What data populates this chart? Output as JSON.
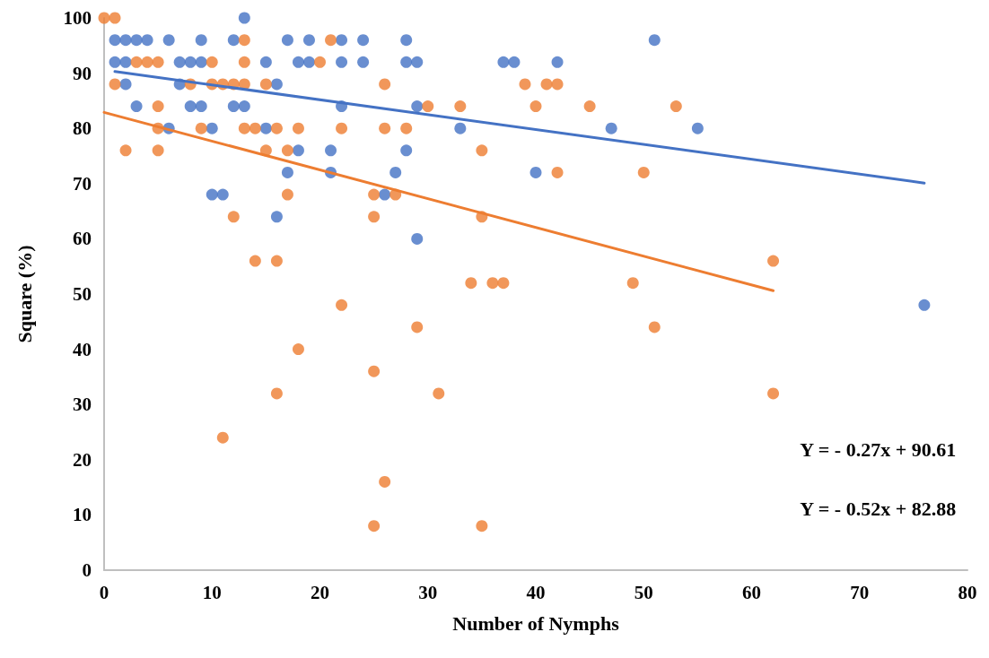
{
  "chart_data": {
    "type": "scatter",
    "xlabel": "Number of Nymphs",
    "ylabel": "Square (%)",
    "xlim": [
      0,
      80
    ],
    "ylim": [
      0,
      100
    ],
    "xticks": [
      0,
      10,
      20,
      30,
      40,
      50,
      60,
      70,
      80
    ],
    "yticks": [
      0,
      10,
      20,
      30,
      40,
      50,
      60,
      70,
      80,
      90,
      100
    ],
    "grid": false,
    "marker": "circle",
    "series": [
      {
        "color": "#4472c4",
        "x": [
          13,
          1,
          2,
          3,
          4,
          6,
          9,
          12,
          17,
          19,
          22,
          24,
          28,
          51,
          1,
          2,
          7,
          8,
          9,
          15,
          18,
          19,
          22,
          24,
          28,
          29,
          37,
          38,
          42,
          2,
          7,
          16,
          3,
          8,
          9,
          12,
          13,
          22,
          29,
          6,
          10,
          15,
          33,
          47,
          55,
          18,
          21,
          28,
          17,
          21,
          27,
          40,
          10,
          11,
          26,
          16,
          29,
          76
        ],
        "values": [
          100,
          96,
          96,
          96,
          96,
          96,
          96,
          96,
          96,
          96,
          96,
          96,
          96,
          96,
          92,
          92,
          92,
          92,
          92,
          92,
          92,
          92,
          92,
          92,
          92,
          92,
          92,
          92,
          92,
          88,
          88,
          88,
          84,
          84,
          84,
          84,
          84,
          84,
          84,
          80,
          80,
          80,
          80,
          80,
          80,
          76,
          76,
          76,
          72,
          72,
          72,
          72,
          68,
          68,
          68,
          64,
          60,
          48
        ]
      },
      {
        "color": "#ed7d31",
        "x": [
          0,
          1,
          13,
          21,
          3,
          4,
          5,
          10,
          13,
          20,
          1,
          8,
          10,
          11,
          12,
          13,
          15,
          26,
          39,
          41,
          42,
          5,
          30,
          33,
          40,
          45,
          53,
          5,
          9,
          13,
          14,
          16,
          18,
          22,
          26,
          28,
          2,
          5,
          15,
          17,
          35,
          42,
          50,
          17,
          25,
          27,
          12,
          25,
          35,
          14,
          16,
          62,
          34,
          36,
          37,
          49,
          22,
          29,
          51,
          18,
          25,
          16,
          31,
          62,
          11,
          26,
          25,
          35
        ],
        "values": [
          100,
          100,
          96,
          96,
          92,
          92,
          92,
          92,
          92,
          92,
          88,
          88,
          88,
          88,
          88,
          88,
          88,
          88,
          88,
          88,
          88,
          84,
          84,
          84,
          84,
          84,
          84,
          80,
          80,
          80,
          80,
          80,
          80,
          80,
          80,
          80,
          76,
          76,
          76,
          76,
          76,
          72,
          72,
          68,
          68,
          68,
          64,
          64,
          64,
          56,
          56,
          56,
          52,
          52,
          52,
          52,
          48,
          44,
          44,
          40,
          36,
          32,
          32,
          32,
          24,
          16,
          8,
          8
        ]
      },
      {
        "type": "line",
        "marker": "none",
        "color": "#4472c4",
        "x": [
          1,
          76
        ],
        "values": [
          90.3,
          70.1
        ]
      },
      {
        "type": "line",
        "marker": "none",
        "color": "#ed7d31",
        "x": [
          0,
          62
        ],
        "values": [
          82.9,
          50.6
        ]
      }
    ],
    "annotations": [
      "Y = - 0.27x + 90.61",
      "Y = - 0.52x + 82.88"
    ]
  }
}
